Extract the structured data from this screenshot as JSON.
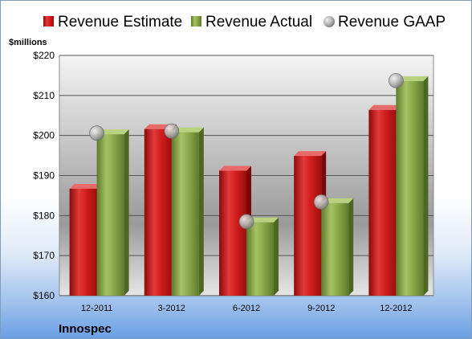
{
  "chart_data": {
    "type": "bar",
    "unit_label": "$millions",
    "company": "Innospec",
    "categories": [
      "12-2011",
      "3-2012",
      "6-2012",
      "9-2012",
      "12-2012"
    ],
    "series": [
      {
        "name": "Revenue Estimate",
        "kind": "bar",
        "color": "#d42020",
        "values": [
          186.7,
          201.6,
          191.2,
          194.9,
          206.4
        ]
      },
      {
        "name": "Revenue Actual",
        "kind": "bar",
        "color": "#8cab4c",
        "values": [
          200.3,
          200.8,
          178.3,
          183.1,
          213.6
        ]
      },
      {
        "name": "Revenue GAAP",
        "kind": "marker",
        "color": "#a8a8a8",
        "values": [
          200.6,
          201.1,
          178.5,
          183.4,
          213.7
        ]
      }
    ],
    "ylim": [
      160,
      220
    ],
    "yticks": [
      "$160",
      "$170",
      "$180",
      "$190",
      "$200",
      "$210",
      "$220"
    ],
    "grid": true,
    "legend_position": "top"
  }
}
